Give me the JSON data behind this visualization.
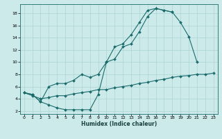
{
  "xlabel": "Humidex (Indice chaleur)",
  "bg_color": "#cceaea",
  "line_color": "#1a6b6b",
  "grid_color": "#aad4d4",
  "xlim": [
    -0.5,
    23.5
  ],
  "ylim": [
    1.5,
    19.5
  ],
  "xticks": [
    0,
    1,
    2,
    3,
    4,
    5,
    6,
    7,
    8,
    9,
    10,
    11,
    12,
    13,
    14,
    15,
    16,
    17,
    18,
    19,
    20,
    21,
    22,
    23
  ],
  "yticks": [
    2,
    4,
    6,
    8,
    10,
    12,
    14,
    16,
    18
  ],
  "curve_a_x": [
    0,
    1,
    2,
    3,
    4,
    5,
    6,
    7,
    8,
    9,
    10,
    11,
    12,
    13,
    14,
    15,
    16,
    17,
    18,
    19,
    20,
    21
  ],
  "curve_a_y": [
    5,
    4.7,
    3.5,
    3.0,
    2.5,
    2.2,
    2.2,
    2.2,
    2.2,
    4.7,
    10.0,
    12.5,
    13.0,
    14.5,
    16.5,
    18.5,
    18.8,
    18.5,
    18.2,
    16.5,
    14.2,
    10.0
  ],
  "curve_b_x": [
    0,
    1,
    2,
    3,
    4,
    5,
    6,
    7,
    8,
    9,
    10,
    11,
    12,
    13,
    14,
    15,
    16,
    17,
    18
  ],
  "curve_b_y": [
    5,
    4.7,
    3.5,
    6.0,
    6.5,
    6.5,
    7.0,
    8.0,
    7.5,
    8.0,
    10.0,
    10.5,
    12.5,
    13.0,
    15.0,
    17.5,
    18.8,
    18.5,
    18.2
  ],
  "curve_c_x": [
    0,
    1,
    2,
    3,
    4,
    5,
    6,
    7,
    8,
    9,
    10,
    11,
    12,
    13,
    14,
    15,
    16,
    17,
    18,
    19,
    20,
    21,
    22,
    23
  ],
  "curve_c_y": [
    5,
    4.5,
    4.0,
    4.2,
    4.5,
    4.5,
    4.8,
    5.0,
    5.2,
    5.5,
    5.5,
    5.8,
    6.0,
    6.2,
    6.5,
    6.7,
    7.0,
    7.2,
    7.5,
    7.7,
    7.8,
    8.0,
    8.0,
    8.2
  ],
  "xlabel_fontsize": 5.5,
  "tick_fontsize": 4.5,
  "linewidth": 0.8,
  "markersize": 2.0
}
